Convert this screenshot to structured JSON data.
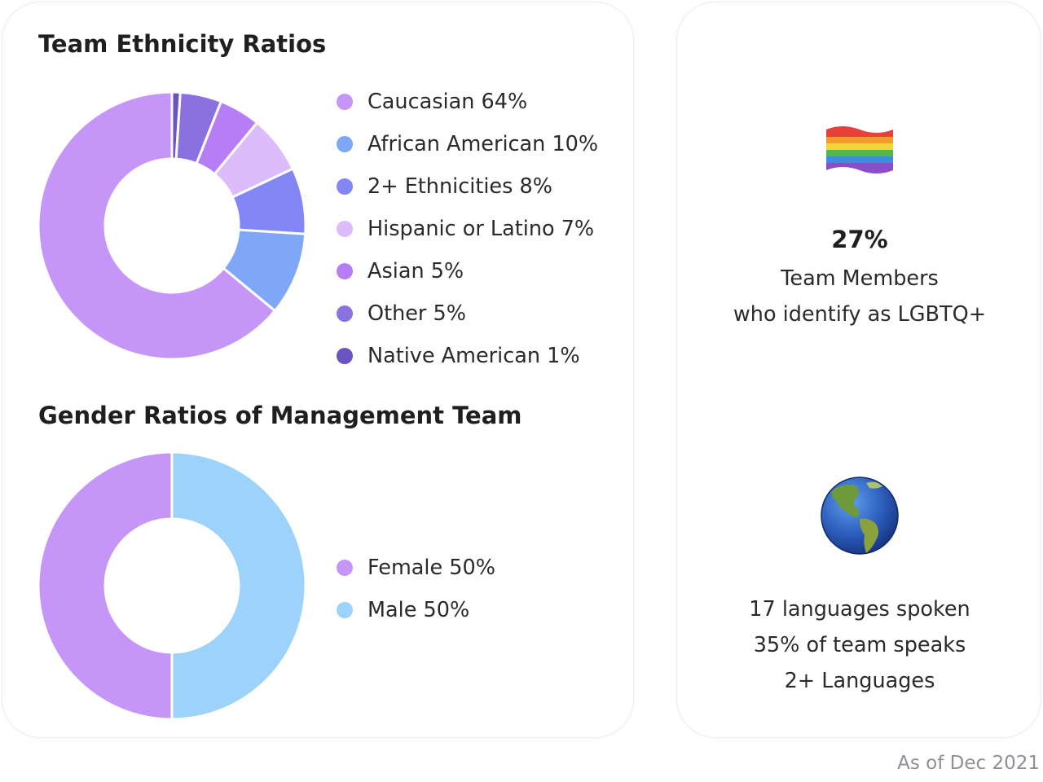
{
  "ethnicity": {
    "title": "Team Ethnicity Ratios",
    "legend": [
      {
        "label": "Caucasian 64%",
        "color": "#c596f7"
      },
      {
        "label": "African American 10%",
        "color": "#7fa7f8"
      },
      {
        "label": "2+ Ethnicities 8%",
        "color": "#8387f5"
      },
      {
        "label": "Hispanic or Latino 7%",
        "color": "#dcbcfb"
      },
      {
        "label": "Asian 5%",
        "color": "#b77df5"
      },
      {
        "label": "Other 5%",
        "color": "#8a71e0"
      },
      {
        "label": "Native American 1%",
        "color": "#6a54c2"
      }
    ]
  },
  "gender": {
    "title": "Gender Ratios of Management Team",
    "legend": [
      {
        "label": "Female 50%",
        "color": "#c596f7"
      },
      {
        "label": "Male 50%",
        "color": "#9dd3fb"
      }
    ]
  },
  "lgbtq": {
    "icon": "rainbow-flag-icon",
    "percent": "27%",
    "line1": "Team Members",
    "line2": "who identify as LGBTQ+"
  },
  "languages": {
    "icon": "globe-americas-icon",
    "line1": "17 languages spoken",
    "line2": "35% of team speaks",
    "line3": "2+ Languages"
  },
  "footnote": "As of Dec 2021",
  "chart_data": [
    {
      "type": "pie",
      "title": "Team Ethnicity Ratios",
      "categories": [
        "Caucasian",
        "African American",
        "2+ Ethnicities",
        "Hispanic or Latino",
        "Asian",
        "Other",
        "Native American"
      ],
      "values": [
        64,
        10,
        8,
        7,
        5,
        5,
        1
      ],
      "order_clockwise_from_top": [
        "Native American",
        "Other",
        "Asian",
        "Hispanic or Latino",
        "2+ Ethnicities",
        "African American",
        "Caucasian"
      ],
      "colors": [
        "#c596f7",
        "#7fa7f8",
        "#8387f5",
        "#dcbcfb",
        "#b77df5",
        "#8a71e0",
        "#6a54c2"
      ],
      "donut": true,
      "legend": "right"
    },
    {
      "type": "pie",
      "title": "Gender Ratios of Management Team",
      "categories": [
        "Female",
        "Male"
      ],
      "values": [
        50,
        50
      ],
      "order_clockwise_from_top": [
        "Male",
        "Female"
      ],
      "colors": [
        "#c596f7",
        "#9dd3fb"
      ],
      "donut": true,
      "legend": "right"
    }
  ]
}
